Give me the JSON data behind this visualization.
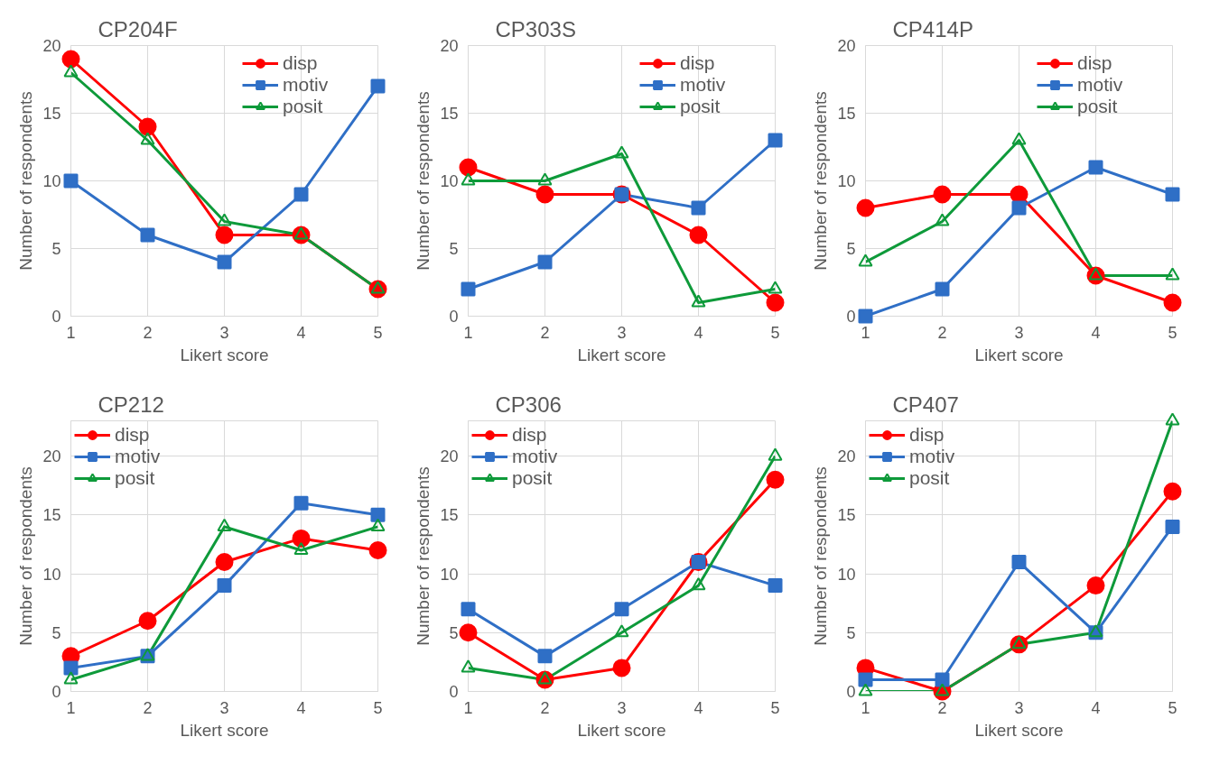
{
  "chart_data": [
    {
      "type": "line",
      "title": "CP204F",
      "xlabel": "Likert score",
      "ylabel": "Number of respondents",
      "x": [
        1,
        2,
        3,
        4,
        5
      ],
      "xlim": [
        1,
        5
      ],
      "xticks": [
        1,
        2,
        3,
        4,
        5
      ],
      "ylim": [
        0,
        20
      ],
      "yticks": [
        0,
        5,
        10,
        15,
        20
      ],
      "grid": true,
      "legend": "top right",
      "series": [
        {
          "name": "disp",
          "color": "#ff0000",
          "marker": "circle",
          "values": [
            19,
            14,
            6,
            6,
            2
          ]
        },
        {
          "name": "motiv",
          "color": "#2f6fc6",
          "marker": "square",
          "values": [
            10,
            6,
            4,
            9,
            17
          ]
        },
        {
          "name": "posit",
          "color": "#0e9a3a",
          "marker": "triangle",
          "values": [
            18,
            13,
            7,
            6,
            2
          ]
        }
      ]
    },
    {
      "type": "line",
      "title": "CP303S",
      "xlabel": "Likert score",
      "ylabel": "Number of respondents",
      "x": [
        1,
        2,
        3,
        4,
        5
      ],
      "xlim": [
        1,
        5
      ],
      "xticks": [
        1,
        2,
        3,
        4,
        5
      ],
      "ylim": [
        0,
        20
      ],
      "yticks": [
        0,
        5,
        10,
        15,
        20
      ],
      "grid": true,
      "legend": "top right",
      "series": [
        {
          "name": "disp",
          "color": "#ff0000",
          "marker": "circle",
          "values": [
            11,
            9,
            9,
            6,
            1
          ]
        },
        {
          "name": "motiv",
          "color": "#2f6fc6",
          "marker": "square",
          "values": [
            2,
            4,
            9,
            8,
            13
          ]
        },
        {
          "name": "posit",
          "color": "#0e9a3a",
          "marker": "triangle",
          "values": [
            10,
            10,
            12,
            1,
            2
          ]
        }
      ]
    },
    {
      "type": "line",
      "title": "CP414P",
      "xlabel": "Likert score",
      "ylabel": "Number of respondents",
      "x": [
        1,
        2,
        3,
        4,
        5
      ],
      "xlim": [
        1,
        5
      ],
      "xticks": [
        1,
        2,
        3,
        4,
        5
      ],
      "ylim": [
        0,
        20
      ],
      "yticks": [
        0,
        5,
        10,
        15,
        20
      ],
      "grid": true,
      "legend": "top right",
      "series": [
        {
          "name": "disp",
          "color": "#ff0000",
          "marker": "circle",
          "values": [
            8,
            9,
            9,
            3,
            1
          ]
        },
        {
          "name": "motiv",
          "color": "#2f6fc6",
          "marker": "square",
          "values": [
            0,
            2,
            8,
            11,
            9
          ]
        },
        {
          "name": "posit",
          "color": "#0e9a3a",
          "marker": "triangle",
          "values": [
            4,
            7,
            13,
            3,
            3
          ]
        }
      ]
    },
    {
      "type": "line",
      "title": "CP212",
      "xlabel": "Likert score",
      "ylabel": "Number of respondents",
      "x": [
        1,
        2,
        3,
        4,
        5
      ],
      "xlim": [
        1,
        5
      ],
      "xticks": [
        1,
        2,
        3,
        4,
        5
      ],
      "ylim": [
        0,
        23
      ],
      "yticks": [
        0,
        5,
        10,
        15,
        20
      ],
      "grid": true,
      "legend": "top left",
      "series": [
        {
          "name": "disp",
          "color": "#ff0000",
          "marker": "circle",
          "values": [
            3,
            6,
            11,
            13,
            12
          ]
        },
        {
          "name": "motiv",
          "color": "#2f6fc6",
          "marker": "square",
          "values": [
            2,
            3,
            9,
            16,
            15
          ]
        },
        {
          "name": "posit",
          "color": "#0e9a3a",
          "marker": "triangle",
          "values": [
            1,
            3,
            14,
            12,
            14
          ]
        }
      ]
    },
    {
      "type": "line",
      "title": "CP306",
      "xlabel": "Likert score",
      "ylabel": "Number of respondents",
      "x": [
        1,
        2,
        3,
        4,
        5
      ],
      "xlim": [
        1,
        5
      ],
      "xticks": [
        1,
        2,
        3,
        4,
        5
      ],
      "ylim": [
        0,
        23
      ],
      "yticks": [
        0,
        5,
        10,
        15,
        20
      ],
      "grid": true,
      "legend": "top left",
      "series": [
        {
          "name": "disp",
          "color": "#ff0000",
          "marker": "circle",
          "values": [
            5,
            1,
            2,
            11,
            18
          ]
        },
        {
          "name": "motiv",
          "color": "#2f6fc6",
          "marker": "square",
          "values": [
            7,
            3,
            7,
            11,
            9
          ]
        },
        {
          "name": "posit",
          "color": "#0e9a3a",
          "marker": "triangle",
          "values": [
            2,
            1,
            5,
            9,
            20
          ]
        }
      ]
    },
    {
      "type": "line",
      "title": "CP407",
      "xlabel": "Likert score",
      "ylabel": "Number of respondents",
      "x": [
        1,
        2,
        3,
        4,
        5
      ],
      "xlim": [
        1,
        5
      ],
      "xticks": [
        1,
        2,
        3,
        4,
        5
      ],
      "ylim": [
        0,
        23
      ],
      "yticks": [
        0,
        5,
        10,
        15,
        20
      ],
      "grid": true,
      "legend": "top left",
      "series": [
        {
          "name": "disp",
          "color": "#ff0000",
          "marker": "circle",
          "values": [
            2,
            0,
            4,
            9,
            17
          ]
        },
        {
          "name": "motiv",
          "color": "#2f6fc6",
          "marker": "square",
          "values": [
            1,
            1,
            11,
            5,
            14
          ]
        },
        {
          "name": "posit",
          "color": "#0e9a3a",
          "marker": "triangle",
          "values": [
            0,
            0,
            4,
            5,
            23
          ]
        }
      ]
    }
  ]
}
